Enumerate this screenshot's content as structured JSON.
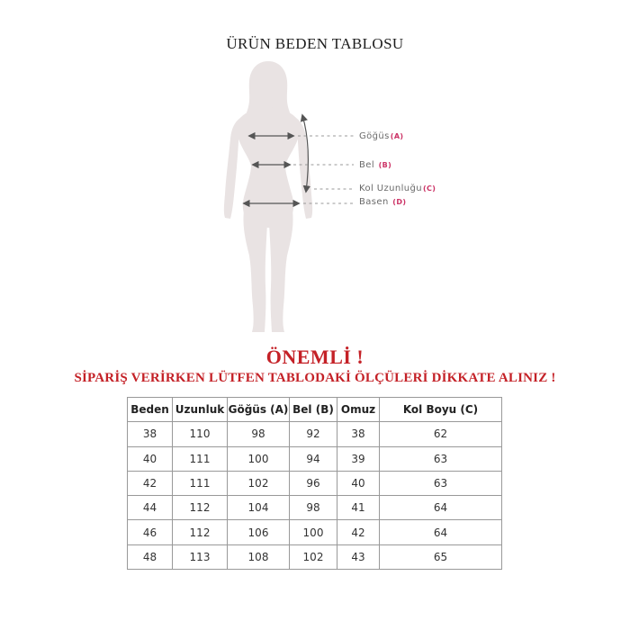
{
  "page": {
    "title": "ÜRÜN BEDEN TABLOSU"
  },
  "colors": {
    "notice_red": "#c42127",
    "label_accent": "#cc3366",
    "silhouette": "#e9e3e3",
    "table_border": "#999999"
  },
  "diagram": {
    "figure": "female-body-silhouette",
    "labels": [
      {
        "name": "Göğüs",
        "letter": "(A)"
      },
      {
        "name": "Bel",
        "letter": "(B)"
      },
      {
        "name": "Kol Uzunluğu",
        "letter": "(C)"
      },
      {
        "name": "Basen",
        "letter": "(D)"
      }
    ]
  },
  "notice": {
    "heading": "ÖNEMLİ !",
    "subheading": "SİPARİŞ VERİRKEN LÜTFEN TABLODAKİ ÖLÇÜLERİ DİKKATE ALINIZ !"
  },
  "table": {
    "headers": [
      "Beden",
      "Uzunluk",
      "Göğüs (A)",
      "Bel (B)",
      "Omuz",
      "Kol Boyu (C)"
    ],
    "rows": [
      [
        "38",
        "110",
        "98",
        "92",
        "38",
        "62"
      ],
      [
        "40",
        "111",
        "100",
        "94",
        "39",
        "63"
      ],
      [
        "42",
        "111",
        "102",
        "96",
        "40",
        "63"
      ],
      [
        "44",
        "112",
        "104",
        "98",
        "41",
        "64"
      ],
      [
        "46",
        "112",
        "106",
        "100",
        "42",
        "64"
      ],
      [
        "48",
        "113",
        "108",
        "102",
        "43",
        "65"
      ]
    ]
  }
}
